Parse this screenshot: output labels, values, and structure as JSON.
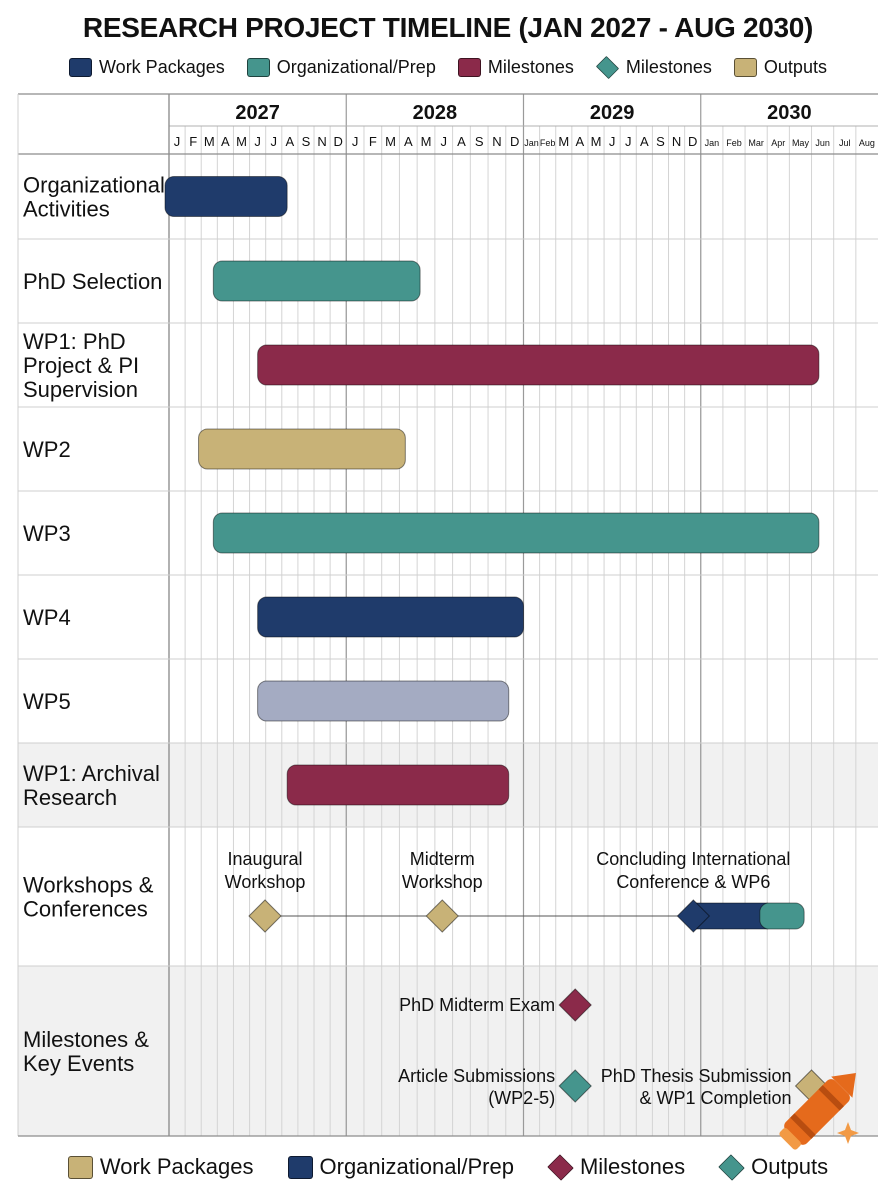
{
  "title": "RESEARCH PROJECT TIMELINE (JAN 2027 - AUG 2030)",
  "colors": {
    "work_packages": "#1f3b6b",
    "organizational_prep": "#45958d",
    "milestones": "#8b2a4a",
    "outputs": "#c8b277",
    "grey": "#a4abc2"
  },
  "legend_top": [
    {
      "label": "Work Packages",
      "color": "#1f3b6b",
      "shape": "square"
    },
    {
      "label": "Organizational/Prep",
      "color": "#45958d",
      "shape": "square"
    },
    {
      "label": "Milestones",
      "color": "#8b2a4a",
      "shape": "square"
    },
    {
      "label": "Milestones",
      "color": "#45958d",
      "shape": "diamond"
    },
    {
      "label": "Outputs",
      "color": "#c8b277",
      "shape": "square"
    }
  ],
  "legend_bottom": [
    {
      "label": "Work Packages",
      "color": "#c8b277",
      "shape": "square"
    },
    {
      "label": "Organizational/Prep",
      "color": "#1f3b6b",
      "shape": "square"
    },
    {
      "label": "Milestones",
      "color": "#8b2a4a",
      "shape": "diamond"
    },
    {
      "label": "Outputs",
      "color": "#45958d",
      "shape": "diamond"
    }
  ],
  "chart_data": {
    "type": "gantt",
    "title": "RESEARCH PROJECT TIMELINE (JAN 2027 - AUG 2030)",
    "years": [
      {
        "label": "2027",
        "months": [
          "J",
          "F",
          "M",
          "A",
          "M",
          "J",
          "J",
          "A",
          "S",
          "N",
          "D"
        ]
      },
      {
        "label": "2028",
        "months": [
          "J",
          "F",
          "M",
          "A",
          "M",
          "J",
          "A",
          "S",
          "N",
          "D"
        ]
      },
      {
        "label": "2029",
        "months": [
          "Jan",
          "Feb",
          "M",
          "A",
          "M",
          "J",
          "J",
          "A",
          "S",
          "N",
          "D"
        ]
      },
      {
        "label": "2030",
        "months": [
          "Jan",
          "Feb",
          "Mar",
          "Apr",
          "May",
          "Jun",
          "Jul",
          "Aug"
        ]
      }
    ],
    "rows": [
      {
        "label": "Organizational\nActivities",
        "shade": false,
        "bars": [
          {
            "start": "2027-01",
            "end": "2027-08",
            "color": "#1f3b6b"
          }
        ]
      },
      {
        "label": "PhD Selection",
        "shade": false,
        "bars": [
          {
            "start": "2027-04",
            "end": "2028-05",
            "color": "#45958d"
          }
        ]
      },
      {
        "label": "WP1: PhD\nProject & PI\nSupervision",
        "shade": false,
        "bars": [
          {
            "start": "2027-07",
            "end": "2030-08",
            "color": "#8b2a4a"
          }
        ]
      },
      {
        "label": "WP2",
        "shade": false,
        "bars": [
          {
            "start": "2027-03",
            "end": "2028-04",
            "color": "#c8b277"
          }
        ]
      },
      {
        "label": "WP3",
        "shade": false,
        "bars": [
          {
            "start": "2027-04",
            "end": "2030-08",
            "color": "#45958d"
          }
        ]
      },
      {
        "label": "WP4",
        "shade": false,
        "bars": [
          {
            "start": "2027-07",
            "end": "2028-12",
            "color": "#1f3b6b"
          }
        ]
      },
      {
        "label": "WP5",
        "shade": false,
        "bars": [
          {
            "start": "2027-07",
            "end": "2028-11",
            "color": "#a4abc2"
          }
        ]
      },
      {
        "label": "WP1: Archival\nResearch",
        "shade": true,
        "bars": [
          {
            "start": "2027-09",
            "end": "2028-11",
            "color": "#8b2a4a"
          }
        ]
      },
      {
        "label": "Workshops &\nConferences",
        "shade": false,
        "bars": [
          {
            "start": "2029-12",
            "end": "2030-05",
            "color": "#1f3b6b"
          },
          {
            "start": "2030-05",
            "end": "2030-07",
            "color": "#45958d"
          }
        ],
        "events": [
          {
            "date": "2027-07",
            "label": "Inaugural\nWorkshop",
            "color": "#c8b277"
          },
          {
            "date": "2028-07",
            "label": "Midterm\nWorkshop",
            "color": "#c8b277"
          },
          {
            "date": "2029-12",
            "label": "Concluding International\nConference & WP6",
            "color": "#1f3b6b"
          }
        ]
      },
      {
        "label": "Milestones &\nKey Events",
        "shade": true,
        "events": [
          {
            "date": "2029-04",
            "label": "PhD Midterm Exam",
            "color": "#8b2a4a",
            "sub": 0
          },
          {
            "date": "2029-04",
            "label": "Article Submissions\n(WP2-5)",
            "color": "#45958d",
            "sub": 1
          },
          {
            "date": "2030-08",
            "label": "PhD Thesis Submission\n& WP1 Completion",
            "color": "#c8b277",
            "sub": 1
          }
        ]
      }
    ]
  }
}
